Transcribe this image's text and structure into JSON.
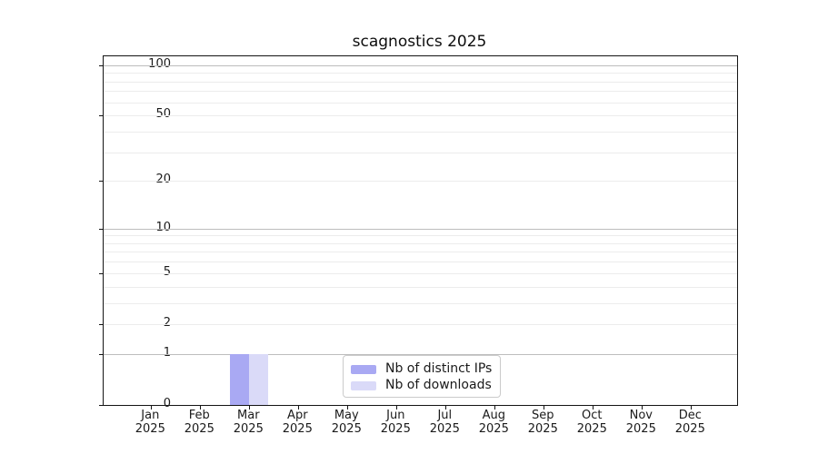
{
  "title": "scagnostics 2025",
  "chart_data": {
    "type": "bar",
    "title": "scagnostics 2025",
    "xlabel": "",
    "ylabel": "",
    "categories": [
      "Jan 2025",
      "Feb 2025",
      "Mar 2025",
      "Apr 2025",
      "May 2025",
      "Jun 2025",
      "Jul 2025",
      "Aug 2025",
      "Sep 2025",
      "Oct 2025",
      "Nov 2025",
      "Dec 2025"
    ],
    "x_tick_months": [
      "Jan",
      "Feb",
      "Mar",
      "Apr",
      "May",
      "Jun",
      "Jul",
      "Aug",
      "Sep",
      "Oct",
      "Nov",
      "Dec"
    ],
    "x_tick_year": "2025",
    "series": [
      {
        "name": "Nb of distinct IPs",
        "color": "#a9a9f3",
        "values": [
          0,
          0,
          1,
          0,
          0,
          0,
          0,
          0,
          0,
          0,
          0,
          0
        ]
      },
      {
        "name": "Nb of downloads",
        "color": "#dadaf8",
        "values": [
          0,
          0,
          1,
          0,
          0,
          0,
          0,
          0,
          0,
          0,
          0,
          0
        ]
      }
    ],
    "y_scale": "log10(1+v), linear-looking symlog with 0 baseline",
    "y_ticks": [
      100,
      50,
      20,
      10,
      5,
      2,
      1,
      0
    ],
    "y_major_gridlines": [
      1,
      10,
      100
    ],
    "y_minor_gridlines": [
      2,
      3,
      4,
      5,
      6,
      7,
      8,
      9,
      20,
      30,
      40,
      50,
      60,
      70,
      80,
      90
    ],
    "y_axis_top_value": 112,
    "ylim": [
      0,
      112
    ],
    "grid": "on",
    "legend_position": "inside lower middle"
  },
  "colors": {
    "bar_distinct_ips": "#a9a9f3",
    "bar_downloads": "#dadaf8",
    "grid_major": "#bdbdbd",
    "grid_minor": "#ececec",
    "axis_spine": "#141414",
    "legend_border": "#cbcbcb",
    "background": "#ffffff"
  }
}
